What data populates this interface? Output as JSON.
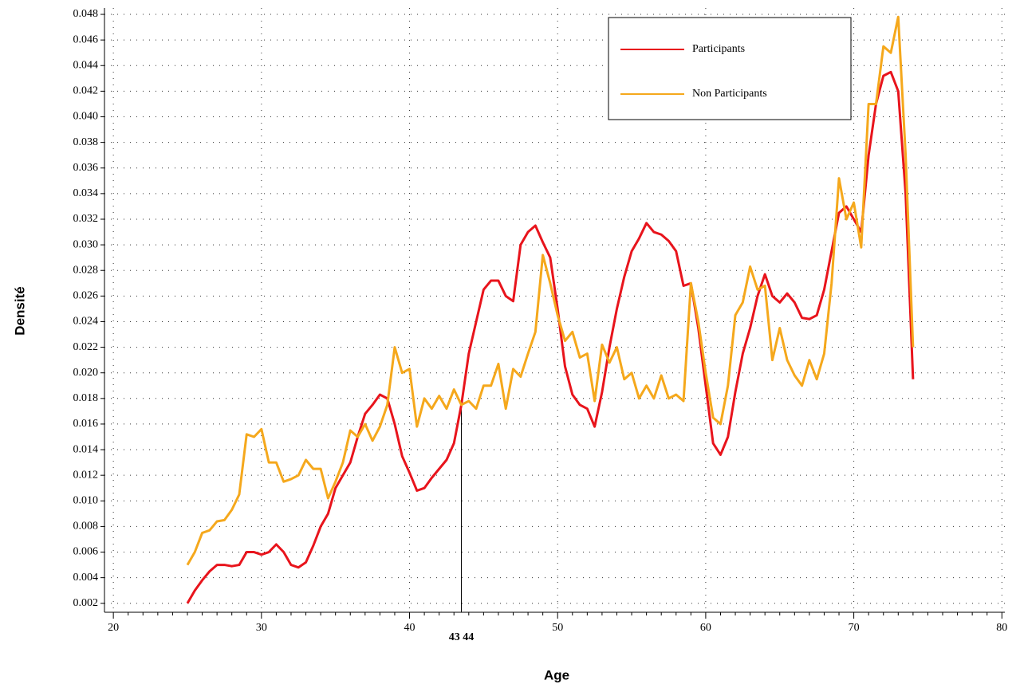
{
  "chart_data": {
    "type": "line",
    "xlabel": "Age",
    "ylabel": "Densité",
    "xlim": [
      19.4,
      80.2
    ],
    "ylim": [
      0.0013,
      0.0485
    ],
    "xticks": [
      20,
      30,
      40,
      50,
      60,
      70,
      80
    ],
    "yticks": [
      0.002,
      0.004,
      0.006,
      0.008,
      {
        "value": 0.01,
        "label": "0.010"
      },
      0.012,
      0.014,
      0.016,
      0.018,
      {
        "value": 0.02,
        "label": "0.020"
      },
      0.022,
      0.024,
      0.026,
      0.028,
      {
        "value": 0.03,
        "label": "0.030"
      },
      0.032,
      0.034,
      0.036,
      0.038,
      {
        "value": 0.04,
        "label": "0.040"
      },
      0.042,
      0.044,
      0.046,
      0.048
    ],
    "grid": true,
    "legend": "upper right",
    "annotation": {
      "x": 43.5,
      "y": 0.0175,
      "text": "43 44"
    },
    "x": [
      25,
      25.5,
      26,
      26.5,
      27,
      27.5,
      28,
      28.5,
      29,
      29.5,
      30,
      30.5,
      31,
      31.5,
      32,
      32.5,
      33,
      33.5,
      34,
      34.5,
      35,
      35.5,
      36,
      36.5,
      37,
      37.5,
      38,
      38.5,
      39,
      39.5,
      40,
      40.5,
      41,
      41.5,
      42,
      42.5,
      43,
      43.5,
      44,
      44.5,
      45,
      45.5,
      46,
      46.5,
      47,
      47.5,
      48,
      48.5,
      49,
      49.5,
      50,
      50.5,
      51,
      51.5,
      52,
      52.5,
      53,
      53.5,
      54,
      54.5,
      55,
      55.5,
      56,
      56.5,
      57,
      57.5,
      58,
      58.5,
      59,
      59.5,
      60,
      60.5,
      61,
      61.5,
      62,
      62.5,
      63,
      63.5,
      64,
      64.5,
      65,
      65.5,
      66,
      66.5,
      67,
      67.5,
      68,
      68.5,
      69,
      69.5,
      70,
      70.5,
      71,
      71.5,
      72,
      72.5,
      73,
      73.5,
      74
    ],
    "series": [
      {
        "name": "Participants",
        "color": "#e8141c",
        "values": [
          0.002,
          0.003,
          0.0038,
          0.0045,
          0.005,
          0.005,
          0.0049,
          0.005,
          0.006,
          0.006,
          0.0058,
          0.006,
          0.0066,
          0.006,
          0.005,
          0.0048,
          0.0052,
          0.0065,
          0.008,
          0.009,
          0.011,
          0.012,
          0.013,
          0.015,
          0.0168,
          0.0175,
          0.0183,
          0.018,
          0.016,
          0.0135,
          0.0122,
          0.0108,
          0.011,
          0.0118,
          0.0125,
          0.0132,
          0.0145,
          0.0175,
          0.0215,
          0.024,
          0.0265,
          0.0272,
          0.0272,
          0.026,
          0.0256,
          0.03,
          0.031,
          0.0315,
          0.0302,
          0.029,
          0.025,
          0.0205,
          0.0183,
          0.0175,
          0.0172,
          0.0158,
          0.0185,
          0.022,
          0.025,
          0.0275,
          0.0295,
          0.0305,
          0.0317,
          0.031,
          0.0308,
          0.0303,
          0.0295,
          0.0268,
          0.027,
          0.0235,
          0.019,
          0.0145,
          0.0136,
          0.015,
          0.0185,
          0.0215,
          0.0235,
          0.026,
          0.0277,
          0.026,
          0.0255,
          0.0262,
          0.0255,
          0.0243,
          0.0242,
          0.0245,
          0.0265,
          0.0295,
          0.0325,
          0.033,
          0.032,
          0.031,
          0.037,
          0.041,
          0.0432,
          0.0435,
          0.042,
          0.034,
          0.0195
        ]
      },
      {
        "name": "Non Participants",
        "color": "#f5a81c",
        "values": [
          0.005,
          0.006,
          0.0075,
          0.0077,
          0.0084,
          0.0085,
          0.0093,
          0.0105,
          0.0152,
          0.015,
          0.0156,
          0.013,
          0.013,
          0.0115,
          0.0117,
          0.012,
          0.0132,
          0.0125,
          0.0125,
          0.0102,
          0.0115,
          0.013,
          0.0155,
          0.015,
          0.016,
          0.0147,
          0.0158,
          0.0175,
          0.022,
          0.02,
          0.0203,
          0.0158,
          0.018,
          0.0172,
          0.0182,
          0.0172,
          0.0187,
          0.0175,
          0.0178,
          0.0172,
          0.019,
          0.019,
          0.0207,
          0.0172,
          0.0203,
          0.0197,
          0.0215,
          0.0232,
          0.0292,
          0.027,
          0.0245,
          0.0225,
          0.0232,
          0.0212,
          0.0215,
          0.0178,
          0.0222,
          0.0208,
          0.022,
          0.0195,
          0.02,
          0.018,
          0.019,
          0.018,
          0.0198,
          0.018,
          0.0183,
          0.0178,
          0.027,
          0.024,
          0.02,
          0.0165,
          0.016,
          0.019,
          0.0245,
          0.0255,
          0.0283,
          0.0265,
          0.0268,
          0.021,
          0.0235,
          0.021,
          0.0198,
          0.019,
          0.021,
          0.0195,
          0.0215,
          0.027,
          0.0352,
          0.032,
          0.0333,
          0.0298,
          0.041,
          0.041,
          0.0455,
          0.045,
          0.0478,
          0.037,
          0.022
        ]
      }
    ]
  }
}
